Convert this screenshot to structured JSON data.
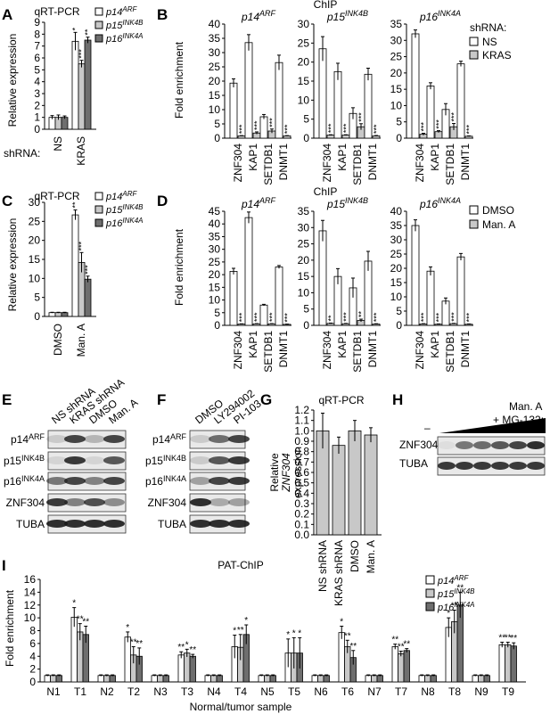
{
  "colors": {
    "p14": "#ffffff",
    "p15": "#c8c8c8",
    "p16": "#6e6e6e",
    "ns": "#ffffff",
    "kras": "#c8c8c8",
    "band": "#1a1a1a"
  },
  "panelA": {
    "letter": "A",
    "title": "qRT-PCR",
    "ylabel": "Relative expression",
    "shrna_label": "shRNA:",
    "legend": [
      {
        "name": "p14",
        "sup": "ARF"
      },
      {
        "name": "p15",
        "sup": "INK4B"
      },
      {
        "name": "p16",
        "sup": "INK4A"
      }
    ]
  },
  "panelB": {
    "letter": "B",
    "title": "ChIP",
    "ylabel": "Fold enrichment",
    "legend_title": "shRNA:",
    "legend": [
      "NS",
      "KRAS"
    ]
  },
  "panelC": {
    "letter": "C",
    "title": "qRT-PCR",
    "ylabel": "Relative expression",
    "legend": [
      {
        "name": "p14",
        "sup": "ARF"
      },
      {
        "name": "p15",
        "sup": "INK4B"
      },
      {
        "name": "p16",
        "sup": "INK4A"
      }
    ]
  },
  "panelD": {
    "letter": "D",
    "title": "ChIP",
    "ylabel": "Fold enrichment",
    "legend": [
      "DMSO",
      "Man. A"
    ]
  },
  "panelE": {
    "letter": "E",
    "lanes": [
      "NS shRNA",
      "KRAS shRNA",
      "DMSO",
      "Man. A"
    ],
    "rows": [
      {
        "name": "p14",
        "sup": "ARF"
      },
      {
        "name": "p15",
        "sup": "INK4B"
      },
      {
        "name": "p16",
        "sup": "INK4A"
      },
      {
        "name": "ZNF304",
        "sup": ""
      },
      {
        "name": "TUBA",
        "sup": ""
      }
    ]
  },
  "panelF": {
    "letter": "F",
    "lanes": [
      "DMSO",
      "LY294002",
      "PI-103"
    ],
    "rows": [
      {
        "name": "p14",
        "sup": "ARF"
      },
      {
        "name": "p15",
        "sup": "INK4B"
      },
      {
        "name": "p16",
        "sup": "INK4A"
      },
      {
        "name": "ZNF304",
        "sup": ""
      },
      {
        "name": "TUBA",
        "sup": ""
      }
    ]
  },
  "panelG": {
    "letter": "G",
    "title": "qRT-PCR",
    "ylabel_line1": "Relative",
    "ylabel_gene": "ZNF304",
    "ylabel_line3": "expression"
  },
  "panelH": {
    "letter": "H",
    "treat1": "Man. A",
    "treat2": "+ MG-132:",
    "minus": "–",
    "rows": [
      "ZNF304",
      "TUBA"
    ]
  },
  "panelI": {
    "letter": "I",
    "title": "PAT-ChIP",
    "ylabel": "Fold enrichment",
    "xlabel": "Normal/tumor sample",
    "legend": [
      {
        "name": "p14",
        "sup": "ARF"
      },
      {
        "name": "p15",
        "sup": "INK4B"
      },
      {
        "name": "p16",
        "sup": "INK4A"
      }
    ]
  },
  "chart_data": [
    {
      "panel": "A",
      "type": "bar",
      "title": "qRT-PCR",
      "ylabel": "Relative expression",
      "ylim": [
        0,
        9
      ],
      "categories": [
        "NS",
        "KRAS"
      ],
      "series": [
        {
          "name": "p14ARF",
          "values": [
            1.0,
            7.4
          ],
          "err": [
            0.15,
            0.75
          ],
          "stars": [
            "",
            "*"
          ]
        },
        {
          "name": "p15INK4B",
          "values": [
            1.0,
            5.5
          ],
          "err": [
            0.2,
            0.3
          ],
          "stars": [
            "",
            "***"
          ]
        },
        {
          "name": "p16INK4A",
          "values": [
            1.0,
            7.5
          ],
          "err": [
            0.12,
            0.25
          ],
          "stars": [
            "",
            "**"
          ]
        }
      ]
    },
    {
      "panel": "B",
      "type": "bar",
      "title": "ChIP",
      "ylabel": "Fold enrichment",
      "categories": [
        "ZNF304",
        "KAP1",
        "SETDB1",
        "DNMT1"
      ],
      "legend": [
        "NS",
        "KRAS"
      ],
      "subplots": [
        {
          "gene": "p14",
          "sup": "ARF",
          "ylim": [
            0,
            40
          ],
          "ticks": [
            0,
            5,
            10,
            15,
            20,
            25,
            30,
            35,
            40
          ],
          "series": [
            {
              "name": "NS",
              "values": [
                19.3,
                33.5,
                7.5,
                26.5
              ],
              "err": [
                1.5,
                2.8,
                0.8,
                2.6
              ]
            },
            {
              "name": "KRAS",
              "values": [
                0.8,
                1.8,
                2.5,
                0.8
              ],
              "err": [
                0.1,
                0.4,
                0.7,
                0.1
              ]
            }
          ],
          "stars": [
            "***",
            "***",
            "***",
            "***"
          ]
        },
        {
          "gene": "p15",
          "sup": "INK4B",
          "ylim": [
            0,
            30
          ],
          "ticks": [
            0,
            5,
            10,
            15,
            20,
            25,
            30
          ],
          "series": [
            {
              "name": "NS",
              "values": [
                23.5,
                17.5,
                6.5,
                16.8
              ],
              "err": [
                3.2,
                2.2,
                1.5,
                1.6
              ]
            },
            {
              "name": "KRAS",
              "values": [
                0.8,
                0.8,
                3.0,
                0.6
              ],
              "err": [
                0.1,
                0.1,
                0.8,
                0.1
              ]
            }
          ],
          "stars": [
            "***",
            "***",
            "***",
            "***"
          ]
        },
        {
          "gene": "p16",
          "sup": "INK4A",
          "ylim": [
            0,
            35
          ],
          "ticks": [
            0,
            5,
            10,
            15,
            20,
            25,
            30,
            35
          ],
          "series": [
            {
              "name": "NS",
              "values": [
                32.0,
                16.0,
                8.8,
                22.8
              ],
              "err": [
                1.2,
                1.0,
                1.8,
                0.8
              ]
            },
            {
              "name": "KRAS",
              "values": [
                1.2,
                2.0,
                3.5,
                0.6
              ],
              "err": [
                0.3,
                0.3,
                1.0,
                0.1
              ]
            }
          ],
          "stars": [
            "***",
            "***",
            "***",
            "***"
          ]
        }
      ]
    },
    {
      "panel": "C",
      "type": "bar",
      "title": "qRT-PCR",
      "ylabel": "Relative expression",
      "ylim": [
        0,
        30
      ],
      "categories": [
        "DMSO",
        "Man. A"
      ],
      "series": [
        {
          "name": "p14ARF",
          "values": [
            1.0,
            26.7
          ],
          "err": [
            0.1,
            1.3
          ],
          "stars": [
            "",
            "**"
          ]
        },
        {
          "name": "p15INK4B",
          "values": [
            1.0,
            14.2
          ],
          "err": [
            0.1,
            2.6
          ],
          "stars": [
            "",
            "***"
          ]
        },
        {
          "name": "p16INK4A",
          "values": [
            1.0,
            9.8
          ],
          "err": [
            0.1,
            0.8
          ],
          "stars": [
            "",
            "***"
          ]
        }
      ]
    },
    {
      "panel": "D",
      "type": "bar",
      "title": "ChIP",
      "ylabel": "Fold enrichment",
      "categories": [
        "ZNF304",
        "KAP1",
        "SETDB1",
        "DNMT1"
      ],
      "legend": [
        "DMSO",
        "Man. A"
      ],
      "subplots": [
        {
          "gene": "p14",
          "sup": "ARF",
          "ylim": [
            0,
            45
          ],
          "ticks": [
            0,
            5,
            10,
            15,
            20,
            25,
            30,
            35,
            40,
            45
          ],
          "series": [
            {
              "name": "DMSO",
              "values": [
                21.3,
                42.5,
                8.0,
                23.0
              ],
              "err": [
                1.2,
                2.2,
                0.3,
                0.6
              ]
            },
            {
              "name": "Man. A",
              "values": [
                0.5,
                0.6,
                0.6,
                0.4
              ],
              "err": [
                0.1,
                0.1,
                0.1,
                0.1
              ]
            }
          ],
          "stars": [
            "***",
            "***",
            "***",
            "***"
          ]
        },
        {
          "gene": "p15",
          "sup": "INK4B",
          "ylim": [
            0,
            35
          ],
          "ticks": [
            0,
            5,
            10,
            15,
            20,
            25,
            30,
            35
          ],
          "series": [
            {
              "name": "DMSO",
              "values": [
                29.0,
                15.0,
                11.5,
                19.7
              ],
              "err": [
                3.2,
                2.4,
                3.0,
                3.0
              ]
            },
            {
              "name": "Man. A",
              "values": [
                0.6,
                0.5,
                1.5,
                0.4
              ],
              "err": [
                0.1,
                0.1,
                0.4,
                0.1
              ]
            }
          ],
          "stars": [
            "**",
            "***",
            "**",
            "***"
          ]
        },
        {
          "gene": "p16",
          "sup": "INK4A",
          "ylim": [
            0,
            40
          ],
          "ticks": [
            0,
            5,
            10,
            15,
            20,
            25,
            30,
            35,
            40
          ],
          "series": [
            {
              "name": "DMSO",
              "values": [
                35.0,
                19.0,
                8.5,
                24.0
              ],
              "err": [
                2.0,
                1.5,
                1.1,
                1.2
              ]
            },
            {
              "name": "Man. A",
              "values": [
                0.5,
                0.4,
                0.6,
                0.4
              ],
              "err": [
                0.1,
                0.1,
                0.1,
                0.1
              ]
            }
          ],
          "stars": [
            "***",
            "***",
            "***",
            "***"
          ]
        }
      ]
    },
    {
      "panel": "G",
      "type": "bar",
      "title": "qRT-PCR",
      "ylabel": "Relative ZNF304 expression",
      "ylim": [
        0,
        1.2
      ],
      "ticks": [
        0,
        0.1,
        0.2,
        0.3,
        0.4,
        0.5,
        0.6,
        0.7,
        0.8,
        0.9,
        1.0,
        1.1,
        1.2
      ],
      "categories": [
        "NS shRNA",
        "KRAS shRNA",
        "DMSO",
        "Man. A"
      ],
      "series": [
        {
          "name": "ZNF304",
          "values": [
            1.0,
            0.86,
            1.0,
            0.96
          ],
          "err": [
            0.17,
            0.08,
            0.1,
            0.07
          ]
        }
      ]
    },
    {
      "panel": "I",
      "type": "bar",
      "title": "PAT-ChIP",
      "ylabel": "Fold enrichment",
      "xlabel": "Normal/tumor sample",
      "ylim": [
        0,
        16
      ],
      "ticks": [
        0,
        2,
        4,
        6,
        8,
        10,
        12,
        14,
        16
      ],
      "categories": [
        "N1",
        "T1",
        "N2",
        "T2",
        "N3",
        "T3",
        "N4",
        "T4",
        "N5",
        "T5",
        "N6",
        "T6",
        "N7",
        "T7",
        "N8",
        "T8",
        "N9",
        "T9"
      ],
      "series": [
        {
          "name": "p14ARF",
          "values": [
            1,
            10.1,
            1,
            7.0,
            1,
            4.2,
            1,
            5.5,
            1,
            4.5,
            1,
            7.7,
            1,
            5.5,
            1,
            8.5,
            1,
            5.8
          ],
          "err": [
            0.1,
            1.5,
            0.1,
            0.8,
            0.1,
            0.5,
            0.1,
            1.8,
            0.1,
            2.2,
            0.1,
            1.0,
            0.1,
            0.4,
            0.1,
            1.5,
            0.1,
            0.4
          ]
        },
        {
          "name": "p15INK4B",
          "values": [
            1,
            7.8,
            1,
            4.2,
            1,
            4.5,
            1,
            5.4,
            1,
            4.5,
            1,
            5.5,
            1,
            4.4,
            1,
            9.4,
            1,
            5.8
          ],
          "err": [
            0.1,
            1.3,
            0.1,
            1.3,
            0.1,
            0.6,
            0.1,
            2.0,
            0.1,
            2.4,
            0.1,
            1.0,
            0.1,
            0.4,
            0.1,
            1.8,
            0.1,
            0.4
          ]
        },
        {
          "name": "p16INK4A",
          "values": [
            1,
            7.4,
            1,
            4.0,
            1,
            4.0,
            1,
            7.4,
            1,
            4.5,
            1,
            3.8,
            1,
            4.9,
            1,
            12.0,
            1,
            5.6
          ],
          "err": [
            0.1,
            1.3,
            0.1,
            1.3,
            0.1,
            0.3,
            0.1,
            1.5,
            0.1,
            2.4,
            0.1,
            1.1,
            0.1,
            0.3,
            0.1,
            2.0,
            0.1,
            0.5
          ]
        }
      ],
      "stars": {
        "T1": [
          "*",
          "**",
          "**"
        ],
        "T2": [
          "*",
          "**",
          "**"
        ],
        "T3": [
          "**",
          "*",
          "**"
        ],
        "T4": [
          "*",
          "**",
          "*"
        ],
        "T5": [
          "*",
          "*",
          "*"
        ],
        "T6": [
          "*",
          "**",
          "**"
        ],
        "T7": [
          "**",
          "**",
          "**"
        ],
        "T8": [
          "*",
          "**",
          "**"
        ],
        "T9": [
          "**",
          "**",
          "**"
        ]
      }
    }
  ]
}
